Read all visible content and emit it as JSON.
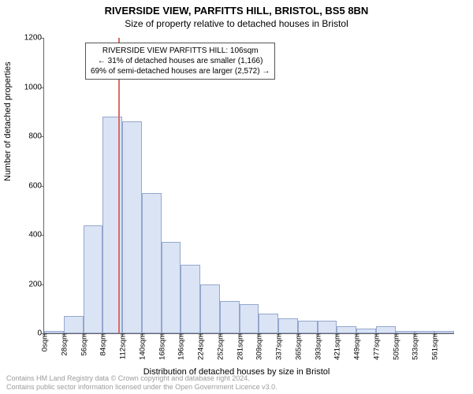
{
  "title": "RIVERSIDE VIEW, PARFITTS HILL, BRISTOL, BS5 8BN",
  "subtitle": "Size of property relative to detached houses in Bristol",
  "chart": {
    "type": "histogram",
    "ylabel": "Number of detached properties",
    "xlabel": "Distribution of detached houses by size in Bristol",
    "ylim": [
      0,
      1200
    ],
    "yticks": [
      0,
      200,
      400,
      600,
      800,
      1000,
      1200
    ],
    "xticks": [
      "0sqm",
      "28sqm",
      "56sqm",
      "84sqm",
      "112sqm",
      "140sqm",
      "168sqm",
      "196sqm",
      "224sqm",
      "252sqm",
      "281sqm",
      "309sqm",
      "337sqm",
      "365sqm",
      "393sqm",
      "421sqm",
      "449sqm",
      "477sqm",
      "505sqm",
      "533sqm",
      "561sqm"
    ],
    "bar_values": [
      10,
      70,
      440,
      880,
      860,
      570,
      370,
      280,
      200,
      130,
      120,
      80,
      60,
      50,
      50,
      30,
      20,
      30,
      10,
      10,
      10
    ],
    "bar_fill": "#dbe4f5",
    "bar_stroke": "#94a7cc",
    "background": "#ffffff",
    "axis_color": "#666666",
    "marker": {
      "position_bin": 3.78,
      "color": "#d96b6b"
    },
    "annotation": {
      "lines": [
        "RIVERSIDE VIEW PARFITTS HILL: 106sqm",
        "← 31% of detached houses are smaller (1,166)",
        "69% of semi-detached houses are larger (2,572) →"
      ],
      "border_color": "#555555",
      "background": "#ffffff",
      "fontsize": 10
    },
    "title_fontsize": 13,
    "subtitle_fontsize": 12,
    "label_fontsize": 11,
    "tick_fontsize": 10
  },
  "footer": {
    "line1": "Contains HM Land Registry data © Crown copyright and database right 2024.",
    "line2": "Contains public sector information licensed under the Open Government Licence v3.0.",
    "color": "#9c9c9c",
    "fontsize": 9
  }
}
